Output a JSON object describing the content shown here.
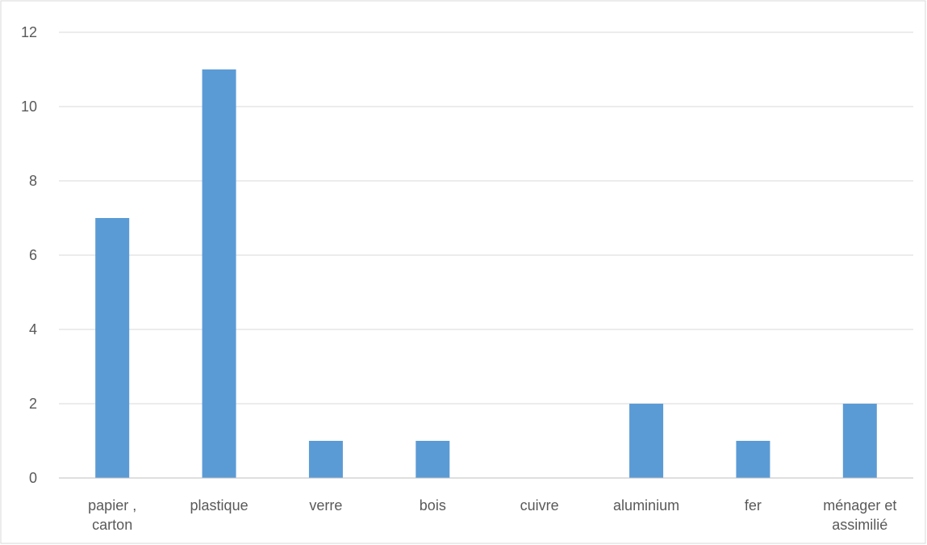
{
  "chart_data": {
    "type": "bar",
    "title": "",
    "xlabel": "",
    "ylabel": "",
    "categories": [
      [
        "papier ,",
        "carton"
      ],
      [
        "plastique"
      ],
      [
        "verre"
      ],
      [
        "bois"
      ],
      [
        "cuivre"
      ],
      [
        "aluminium"
      ],
      [
        "fer"
      ],
      [
        "ménager et",
        "assimilié"
      ]
    ],
    "values": [
      7,
      11,
      1,
      1,
      0,
      2,
      1,
      2
    ],
    "ylim": [
      0,
      12
    ],
    "yticks": [
      "0",
      "2",
      "4",
      "6",
      "8",
      "10",
      "12"
    ],
    "grid": true,
    "legend": "none",
    "colors": {
      "bar": "#5b9bd5",
      "grid": "#d9d9d9",
      "axis": "#bfbfbf",
      "frame": "#d9d9d9",
      "text": "#595959"
    }
  }
}
